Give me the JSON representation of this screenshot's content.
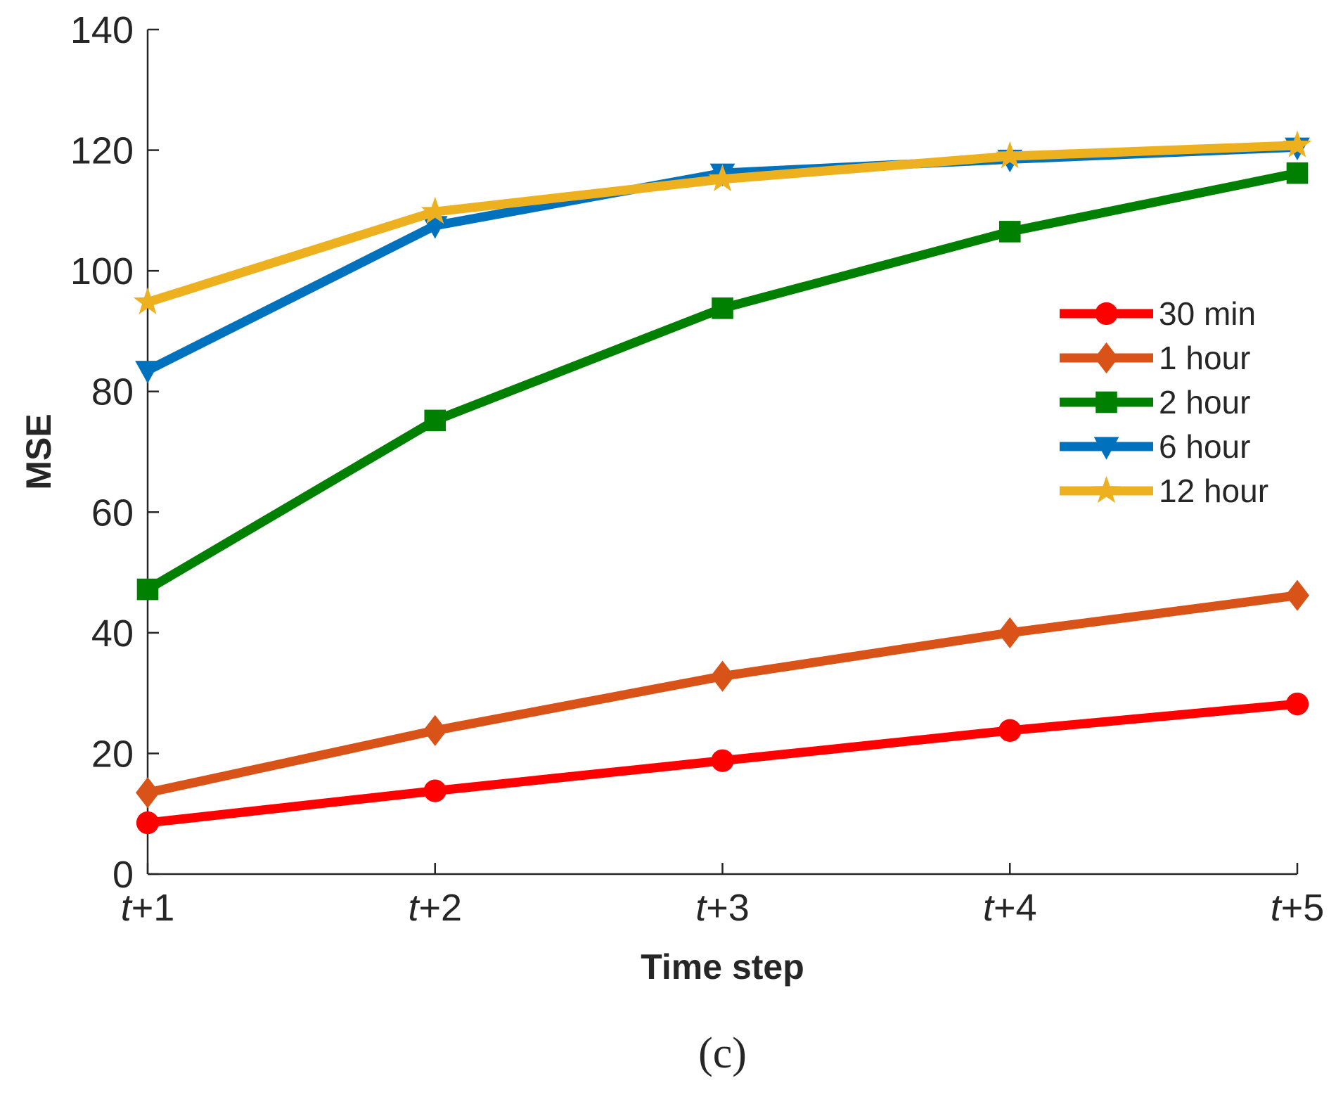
{
  "chart_data": {
    "type": "line",
    "categories": [
      "t+1",
      "t+2",
      "t+3",
      "t+4",
      "t+5"
    ],
    "category_tex": {
      "prefix": "t",
      "suffixes": [
        "+1",
        "+2",
        "+3",
        "+4",
        "+5"
      ]
    },
    "xlabel": "Time step",
    "ylabel": "MSE",
    "ylim": [
      0,
      140
    ],
    "yticks": [
      0,
      20,
      40,
      60,
      80,
      100,
      120,
      140
    ],
    "grid": false,
    "legend_position": "right",
    "panel_label": "(c)",
    "series": [
      {
        "name": "30 min",
        "color": "#ff0000",
        "marker": "circle",
        "values": [
          8.5,
          13.8,
          18.8,
          23.8,
          28.2
        ]
      },
      {
        "name": "1 hour",
        "color": "#d95319",
        "marker": "diamond",
        "values": [
          13.5,
          23.8,
          32.8,
          40.0,
          46.2
        ]
      },
      {
        "name": "2 hour",
        "color": "#008000",
        "marker": "square",
        "values": [
          47.2,
          75.2,
          93.8,
          106.5,
          116.2
        ]
      },
      {
        "name": "6 hour",
        "color": "#0072bd",
        "marker": "triangle-down",
        "values": [
          83.5,
          107.5,
          116.2,
          118.5,
          120.5
        ]
      },
      {
        "name": "12 hour",
        "color": "#edb120",
        "marker": "star",
        "values": [
          94.8,
          109.8,
          115.2,
          119.0,
          120.8
        ]
      }
    ]
  }
}
